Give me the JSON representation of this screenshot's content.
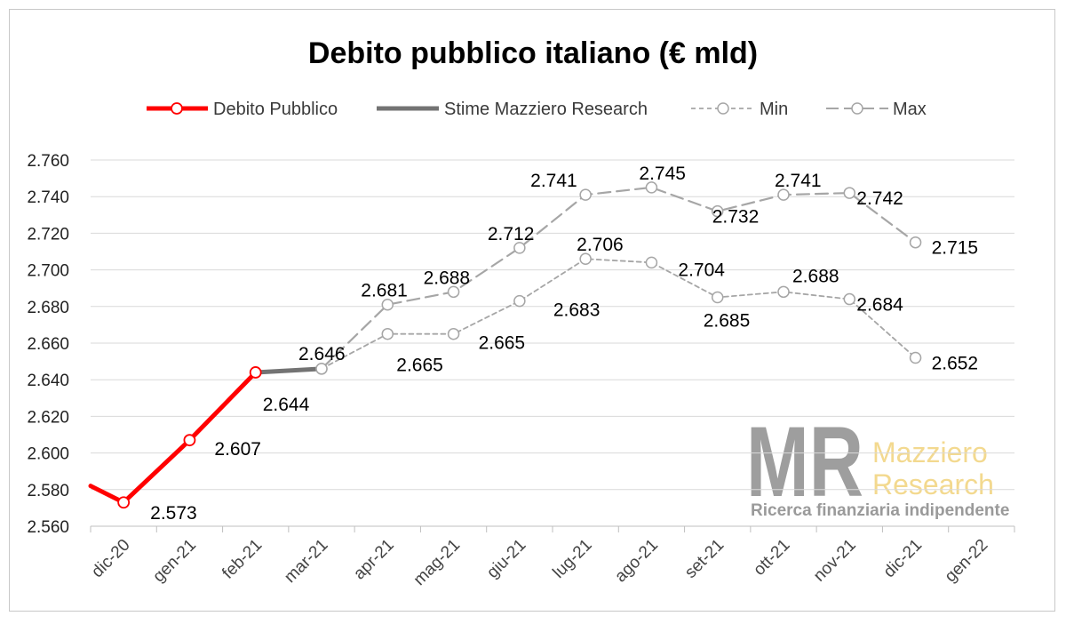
{
  "chart_data": {
    "type": "line",
    "title": "Debito pubblico italiano (€ mld)",
    "categories": [
      "dic-20",
      "gen-21",
      "feb-21",
      "mar-21",
      "apr-21",
      "mag-21",
      "giu-21",
      "lug-21",
      "ago-21",
      "set-21",
      "ott-21",
      "nov-21",
      "dic-21",
      "gen-22"
    ],
    "ylim": [
      2560,
      2760
    ],
    "yticks": [
      2560,
      2580,
      2600,
      2620,
      2640,
      2660,
      2680,
      2700,
      2720,
      2740,
      2760
    ],
    "ytick_labels": [
      "2.560",
      "2.580",
      "2.600",
      "2.620",
      "2.640",
      "2.660",
      "2.680",
      "2.700",
      "2.720",
      "2.740",
      "2.760"
    ],
    "grid": "horizontal",
    "legend_position": "top",
    "series": [
      {
        "name": "Debito Pubblico",
        "color": "#ff0000",
        "style": "solid",
        "marker": "circle",
        "lead_in_value": 2582,
        "points": [
          {
            "x": "dic-20",
            "y": 2573,
            "label": "2.573"
          },
          {
            "x": "gen-21",
            "y": 2607,
            "label": "2.607"
          },
          {
            "x": "feb-21",
            "y": 2644,
            "label": "2.644"
          }
        ]
      },
      {
        "name": "Stime Mazziero Research",
        "color": "#737373",
        "style": "solid",
        "marker": "none",
        "points": [
          {
            "x": "feb-21",
            "y": 2644
          },
          {
            "x": "mar-21",
            "y": 2646,
            "label": "2.646"
          }
        ]
      },
      {
        "name": "Min",
        "color": "#a6a6a6",
        "style": "dashed",
        "marker": "circle",
        "points": [
          {
            "x": "mar-21",
            "y": 2646
          },
          {
            "x": "apr-21",
            "y": 2665,
            "label": "2.665"
          },
          {
            "x": "mag-21",
            "y": 2665,
            "label": "2.665"
          },
          {
            "x": "giu-21",
            "y": 2683,
            "label": "2.683"
          },
          {
            "x": "lug-21",
            "y": 2706,
            "label": "2.706"
          },
          {
            "x": "ago-21",
            "y": 2704,
            "label": "2.704"
          },
          {
            "x": "set-21",
            "y": 2685,
            "label": "2.685"
          },
          {
            "x": "ott-21",
            "y": 2688,
            "label": "2.688"
          },
          {
            "x": "nov-21",
            "y": 2684,
            "label": "2.684"
          },
          {
            "x": "dic-21",
            "y": 2652,
            "label": "2.652"
          }
        ]
      },
      {
        "name": "Max",
        "color": "#a6a6a6",
        "style": "longdash",
        "marker": "circle",
        "points": [
          {
            "x": "mar-21",
            "y": 2646
          },
          {
            "x": "apr-21",
            "y": 2681,
            "label": "2.681"
          },
          {
            "x": "mag-21",
            "y": 2688,
            "label": "2.688"
          },
          {
            "x": "giu-21",
            "y": 2712,
            "label": "2.712"
          },
          {
            "x": "lug-21",
            "y": 2741,
            "label": "2.741"
          },
          {
            "x": "ago-21",
            "y": 2745,
            "label": "2.745"
          },
          {
            "x": "set-21",
            "y": 2732,
            "label": "2.732"
          },
          {
            "x": "ott-21",
            "y": 2741,
            "label": "2.741"
          },
          {
            "x": "nov-21",
            "y": 2742,
            "label": "2.742"
          },
          {
            "x": "dic-21",
            "y": 2715,
            "label": "2.715"
          }
        ]
      }
    ]
  },
  "watermark": {
    "mark": "MR",
    "line1": "Mazziero",
    "line2": "Research",
    "tagline": "Ricerca finanziaria indipendente",
    "mark_color": "#9e9e9e",
    "name_color": "#f3d98f"
  }
}
